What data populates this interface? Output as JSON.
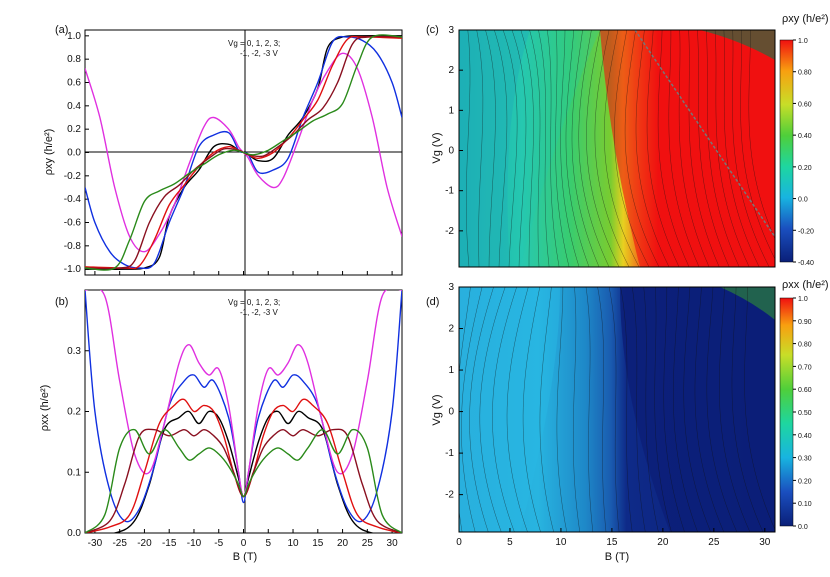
{
  "colors": {
    "black": "#000000",
    "red": "#e01010",
    "blue": "#1030e0",
    "magenta": "#e030e0",
    "darkred": "#8a1020",
    "green": "#2a8a1a"
  },
  "panels": {
    "a": {
      "tag": "(a)",
      "ylabel": "ρxy (h/e²)",
      "legend_line1": "Vg = 0, 1, 2, 3;",
      "legend_line2": "-1, -2, -3 V"
    },
    "b": {
      "tag": "(b)",
      "ylabel": "ρxx (h/e²)",
      "legend_line1": "Vg = 0, 1, 2, 3;",
      "legend_line2": "-1, -2, -3 V",
      "xlabel": "B (T)"
    },
    "c": {
      "tag": "(c)",
      "ylabel": "Vg (V)",
      "cbar_title": "ρxy (h/e²)"
    },
    "d": {
      "tag": "(d)",
      "ylabel": "Vg (V)",
      "xlabel": "B (T)",
      "cbar_title": "ρxx (h/e²)"
    }
  },
  "chart_data": [
    {
      "panel": "a",
      "type": "line",
      "xlabel": "",
      "ylabel": "ρxy (h/e²)",
      "xlim": [
        -32,
        32
      ],
      "ylim": [
        -1.05,
        1.05
      ],
      "yticks": [
        "-1.0",
        "-0.8",
        "-0.6",
        "-0.4",
        "-0.2",
        "0.0",
        "0.2",
        "0.4",
        "0.6",
        "0.8",
        "1.0"
      ],
      "xticks": [
        "-30",
        "-25",
        "-20",
        "-15",
        "-10",
        "-5",
        "0",
        "5",
        "10",
        "15",
        "20",
        "25",
        "30"
      ],
      "series": [
        {
          "name": "0",
          "color": "#000000",
          "x": [
            -32,
            -24,
            -20,
            -17,
            -15,
            -12,
            -9,
            -6,
            -3,
            -1,
            0,
            1,
            3,
            6,
            9,
            12,
            15,
            17,
            20,
            24,
            32
          ],
          "y": [
            -1.0,
            -1.0,
            -0.99,
            -0.9,
            -0.55,
            -0.3,
            -0.15,
            0.05,
            0.07,
            0.02,
            0.0,
            -0.02,
            -0.07,
            -0.05,
            0.15,
            0.3,
            0.55,
            0.9,
            0.99,
            1.0,
            1.0
          ]
        },
        {
          "name": "1",
          "color": "#1030e0",
          "x": [
            -32,
            -30,
            -27,
            -24,
            -21,
            -18,
            -15,
            -12,
            -9,
            -6,
            -3,
            -1,
            0,
            1,
            3,
            6,
            9,
            12,
            15,
            18,
            21,
            24,
            27,
            30,
            32
          ],
          "y": [
            -0.3,
            -0.6,
            -0.85,
            -0.96,
            -0.99,
            -0.95,
            -0.6,
            -0.3,
            0.05,
            0.15,
            0.17,
            0.02,
            0.0,
            -0.02,
            -0.17,
            -0.15,
            -0.05,
            0.3,
            0.6,
            0.95,
            0.99,
            0.96,
            0.85,
            0.6,
            0.3
          ]
        },
        {
          "name": "2",
          "color": "#e030e0",
          "x": [
            -32,
            -29,
            -26,
            -23,
            -20,
            -17,
            -14,
            -11,
            -8,
            -6,
            -3,
            -1,
            0,
            1,
            3,
            6,
            8,
            11,
            14,
            17,
            20,
            23,
            26,
            29,
            32
          ],
          "y": [
            0.72,
            0.3,
            -0.3,
            -0.72,
            -0.85,
            -0.7,
            -0.45,
            -0.1,
            0.22,
            0.3,
            0.2,
            0.05,
            0.0,
            -0.05,
            -0.2,
            -0.3,
            -0.22,
            0.1,
            0.45,
            0.7,
            0.85,
            0.72,
            0.3,
            -0.3,
            -0.72
          ]
        },
        {
          "name": "-1",
          "color": "#e01010",
          "x": [
            -32,
            -24,
            -21,
            -18,
            -15,
            -12,
            -9,
            -6,
            -3,
            -1,
            0,
            1,
            3,
            6,
            9,
            12,
            15,
            18,
            21,
            24,
            32
          ],
          "y": [
            -0.98,
            -0.99,
            -0.97,
            -0.75,
            -0.45,
            -0.28,
            -0.12,
            0.0,
            0.05,
            0.02,
            0.0,
            -0.02,
            -0.05,
            0.0,
            0.12,
            0.28,
            0.45,
            0.75,
            0.97,
            0.99,
            0.98
          ]
        },
        {
          "name": "-2",
          "color": "#8a1020",
          "x": [
            -32,
            -25,
            -22,
            -19,
            -16,
            -13,
            -10,
            -7,
            -4,
            -1,
            0,
            1,
            4,
            7,
            10,
            13,
            16,
            19,
            22,
            25,
            32
          ],
          "y": [
            -0.99,
            -0.99,
            -0.93,
            -0.6,
            -0.38,
            -0.28,
            -0.15,
            -0.05,
            0.03,
            0.02,
            0.0,
            -0.02,
            -0.03,
            0.05,
            0.15,
            0.28,
            0.38,
            0.6,
            0.93,
            0.99,
            0.99
          ]
        },
        {
          "name": "-3",
          "color": "#2a8a1a",
          "x": [
            -32,
            -26,
            -23,
            -20,
            -17,
            -14,
            -11,
            -8,
            -5,
            -2,
            0,
            2,
            5,
            8,
            11,
            14,
            17,
            20,
            23,
            26,
            32
          ],
          "y": [
            -0.99,
            -0.99,
            -0.75,
            -0.42,
            -0.33,
            -0.27,
            -0.18,
            -0.1,
            -0.02,
            0.02,
            0.0,
            -0.02,
            0.02,
            0.1,
            0.18,
            0.27,
            0.33,
            0.42,
            0.75,
            0.99,
            0.99
          ]
        }
      ]
    },
    {
      "panel": "b",
      "type": "line",
      "xlabel": "B (T)",
      "ylabel": "ρxx (h/e²)",
      "xlim": [
        -32,
        32
      ],
      "ylim": [
        0,
        0.4
      ],
      "yticks": [
        "0.0",
        "0.1",
        "0.2",
        "0.3"
      ],
      "xticks": [
        "-30",
        "-25",
        "-20",
        "-15",
        "-10",
        "-5",
        "0",
        "5",
        "10",
        "15",
        "20",
        "25",
        "30"
      ],
      "series": [
        {
          "name": "0",
          "color": "#000000",
          "x": [
            -32,
            -26,
            -22,
            -19,
            -16,
            -13,
            -11,
            -9,
            -7,
            -5,
            -3,
            -1,
            0,
            1,
            3,
            5,
            7,
            9,
            11,
            13,
            16,
            19,
            22,
            26,
            32
          ],
          "y": [
            0.0,
            0.0,
            0.02,
            0.08,
            0.17,
            0.19,
            0.2,
            0.18,
            0.2,
            0.19,
            0.15,
            0.09,
            0.06,
            0.09,
            0.15,
            0.19,
            0.2,
            0.18,
            0.2,
            0.19,
            0.17,
            0.08,
            0.02,
            0.0,
            0.0
          ]
        },
        {
          "name": "1",
          "color": "#1030e0",
          "x": [
            -32,
            -30,
            -27,
            -24,
            -21,
            -18,
            -15,
            -12,
            -10,
            -8,
            -6,
            -3,
            -1,
            0,
            1,
            3,
            6,
            8,
            10,
            12,
            15,
            18,
            21,
            24,
            27,
            30,
            32
          ],
          "y": [
            0.4,
            0.2,
            0.07,
            0.02,
            0.04,
            0.11,
            0.21,
            0.25,
            0.26,
            0.24,
            0.25,
            0.19,
            0.1,
            0.05,
            0.1,
            0.19,
            0.25,
            0.24,
            0.26,
            0.25,
            0.21,
            0.11,
            0.04,
            0.02,
            0.07,
            0.2,
            0.4
          ]
        },
        {
          "name": "2",
          "color": "#e030e0",
          "x": [
            -32,
            -28,
            -25,
            -22,
            -19,
            -16,
            -13,
            -11,
            -9,
            -7,
            -5,
            -3,
            -1,
            0,
            1,
            3,
            5,
            7,
            9,
            11,
            13,
            16,
            19,
            22,
            25,
            28,
            32
          ],
          "y": [
            0.4,
            0.39,
            0.25,
            0.13,
            0.1,
            0.18,
            0.28,
            0.31,
            0.28,
            0.26,
            0.27,
            0.21,
            0.1,
            0.06,
            0.1,
            0.21,
            0.27,
            0.26,
            0.28,
            0.31,
            0.28,
            0.18,
            0.1,
            0.13,
            0.25,
            0.39,
            0.4
          ]
        },
        {
          "name": "-1",
          "color": "#e01010",
          "x": [
            -32,
            -27,
            -23,
            -20,
            -17,
            -14,
            -12,
            -10,
            -8,
            -6,
            -4,
            -2,
            0,
            2,
            4,
            6,
            8,
            10,
            12,
            14,
            17,
            20,
            23,
            27,
            32
          ],
          "y": [
            0.0,
            0.01,
            0.03,
            0.1,
            0.18,
            0.21,
            0.22,
            0.2,
            0.21,
            0.2,
            0.16,
            0.1,
            0.06,
            0.1,
            0.16,
            0.2,
            0.21,
            0.2,
            0.22,
            0.21,
            0.18,
            0.1,
            0.03,
            0.01,
            0.0
          ]
        },
        {
          "name": "-2",
          "color": "#8a1020",
          "x": [
            -32,
            -27,
            -24,
            -21,
            -18,
            -15,
            -12,
            -10,
            -8,
            -6,
            -4,
            -2,
            0,
            2,
            4,
            6,
            8,
            10,
            12,
            15,
            18,
            21,
            24,
            27,
            32
          ],
          "y": [
            0.0,
            0.02,
            0.08,
            0.16,
            0.17,
            0.16,
            0.17,
            0.16,
            0.17,
            0.16,
            0.14,
            0.1,
            0.06,
            0.1,
            0.14,
            0.16,
            0.17,
            0.16,
            0.17,
            0.16,
            0.17,
            0.16,
            0.08,
            0.02,
            0.0
          ]
        },
        {
          "name": "-3",
          "color": "#2a8a1a",
          "x": [
            -32,
            -28,
            -25,
            -22,
            -19,
            -16,
            -13,
            -11,
            -9,
            -7,
            -5,
            -3,
            -1,
            0,
            1,
            3,
            5,
            7,
            9,
            11,
            13,
            16,
            19,
            22,
            25,
            28,
            32
          ],
          "y": [
            0.0,
            0.03,
            0.14,
            0.17,
            0.13,
            0.17,
            0.14,
            0.12,
            0.13,
            0.14,
            0.13,
            0.11,
            0.08,
            0.06,
            0.08,
            0.11,
            0.13,
            0.14,
            0.13,
            0.12,
            0.14,
            0.17,
            0.13,
            0.17,
            0.14,
            0.03,
            0.0
          ]
        }
      ]
    },
    {
      "panel": "c",
      "type": "heatmap",
      "xlabel": "",
      "ylabel": "Vg (V)",
      "xlim": [
        0,
        31
      ],
      "ylim": [
        -2.9,
        3
      ],
      "xticks": [],
      "yticks": [
        "-2",
        "-1",
        "0",
        "1",
        "2",
        "3"
      ],
      "colorbar": {
        "title": "ρxy (h/e²)",
        "min": -0.4,
        "max": 1.0,
        "ticks": [
          "-0.40",
          "-0.20",
          "0.0",
          "0.20",
          "0.40",
          "0.60",
          "0.80",
          "1.0"
        ]
      },
      "description_values": "ρxy rises from ~0 at B=0 to 1.0 above ~17 T; quantized plateau region (red) bounded by a dashed line from (17,3) to (31,-2)"
    },
    {
      "panel": "d",
      "type": "heatmap",
      "xlabel": "B (T)",
      "ylabel": "Vg (V)",
      "xlim": [
        0,
        31
      ],
      "ylim": [
        -2.9,
        3
      ],
      "xticks": [
        "0",
        "5",
        "10",
        "15",
        "20",
        "25",
        "30"
      ],
      "yticks": [
        "-2",
        "-1",
        "0",
        "1",
        "2",
        "3"
      ],
      "colorbar": {
        "title": "ρxx (h/e²)",
        "min": 0.0,
        "max": 1.0,
        "ticks": [
          "0.0",
          "0.10",
          "0.20",
          "0.30",
          "0.40",
          "0.50",
          "0.60",
          "0.70",
          "0.80",
          "0.90",
          "1.0"
        ]
      },
      "description_values": "ρxx ~0.2-0.3 at low field, drops to ~0 (dark blue) above ~15 T, rising near top-right corner"
    }
  ]
}
